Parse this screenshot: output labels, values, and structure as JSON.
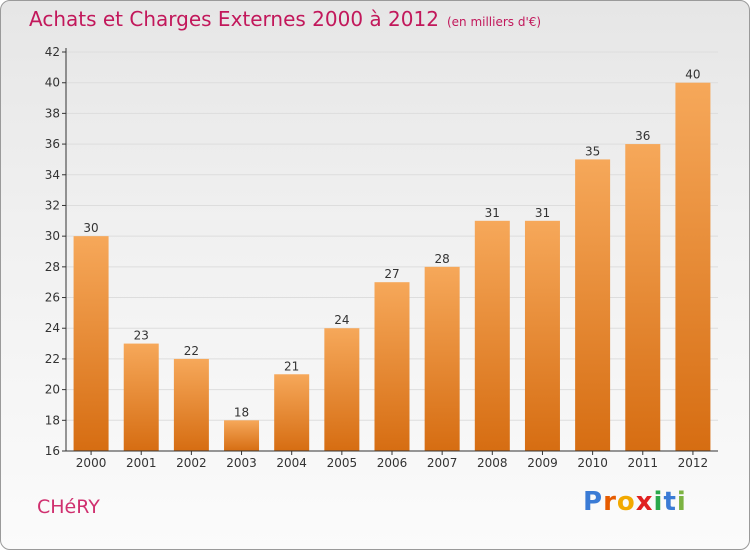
{
  "header": {
    "title": "Achats et Charges Externes 2000 à 2012",
    "unit": "(en milliers d'€)"
  },
  "footer": {
    "commune": "CHéRY",
    "logo_letters": [
      "P",
      "r",
      "o",
      "x",
      "i",
      "t",
      "i"
    ],
    "logo_colors": [
      "#3a7bd5",
      "#e65c00",
      "#f2a900",
      "#e02020",
      "#2aa84a",
      "#3a7bd5",
      "#7cb342"
    ]
  },
  "colors": {
    "bar_top": "#f6a85a",
    "bar_bottom": "#d66d12",
    "grid": "#dddddd",
    "axis": "#333333",
    "title": "#c2185b"
  },
  "chart_data": {
    "type": "bar",
    "title": "Achats et Charges Externes 2000 à 2012",
    "subtitle": "(en milliers d'€)",
    "categories": [
      "2000",
      "2001",
      "2002",
      "2003",
      "2004",
      "2005",
      "2006",
      "2007",
      "2008",
      "2009",
      "2010",
      "2011",
      "2012"
    ],
    "values": [
      30,
      23,
      22,
      18,
      21,
      24,
      27,
      28,
      31,
      31,
      35,
      36,
      40
    ],
    "ylim": [
      16,
      42
    ],
    "yticks": [
      16,
      18,
      20,
      22,
      24,
      26,
      28,
      30,
      32,
      34,
      36,
      38,
      40,
      42
    ],
    "grid": true,
    "data_labels": true
  }
}
